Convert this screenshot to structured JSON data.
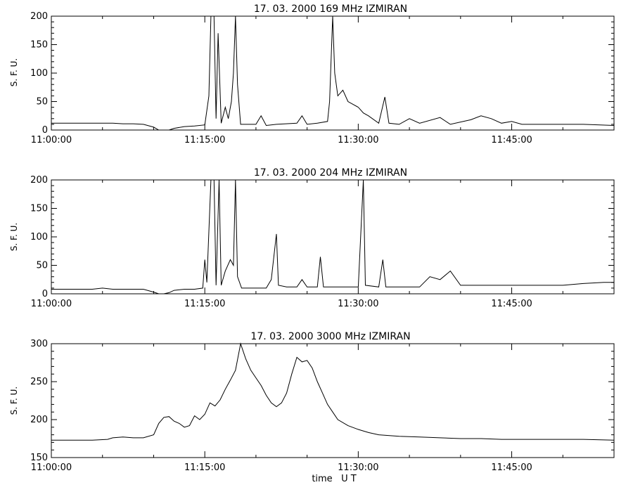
{
  "chart_data": [
    {
      "type": "line",
      "title": "17.  03.  2000    169 MHz    IZMIRAN",
      "ylabel": "S. F. U.",
      "xlabel": "",
      "x_unit": "minutes after 11:00:00 UT",
      "xlim": [
        0,
        55
      ],
      "ylim": [
        0,
        200
      ],
      "x_ticks": [
        "11:00:00",
        "11:15:00",
        "11:30:00",
        "11:45:00"
      ],
      "y_ticks": [
        0,
        50,
        100,
        150,
        200
      ],
      "grid": false,
      "series": [
        {
          "values": [
            [
              0,
              12
            ],
            [
              1,
              12
            ],
            [
              2,
              12
            ],
            [
              3,
              12
            ],
            [
              4,
              12
            ],
            [
              5,
              12
            ],
            [
              6,
              12
            ],
            [
              7,
              11
            ],
            [
              8,
              11
            ],
            [
              9,
              10
            ],
            [
              10,
              5
            ],
            [
              10.5,
              0
            ],
            [
              11.5,
              0
            ],
            [
              12,
              3
            ],
            [
              13,
              6
            ],
            [
              14,
              7
            ],
            [
              15,
              9
            ],
            [
              15.4,
              60
            ],
            [
              15.6,
              200
            ],
            [
              15.9,
              200
            ],
            [
              16.1,
              20
            ],
            [
              16.3,
              170
            ],
            [
              16.6,
              12
            ],
            [
              17,
              40
            ],
            [
              17.3,
              20
            ],
            [
              17.6,
              50
            ],
            [
              17.8,
              100
            ],
            [
              18,
              200
            ],
            [
              18.2,
              80
            ],
            [
              18.5,
              10
            ],
            [
              20,
              10
            ],
            [
              20.5,
              25
            ],
            [
              21,
              8
            ],
            [
              22,
              10
            ],
            [
              24,
              12
            ],
            [
              24.5,
              25
            ],
            [
              25,
              10
            ],
            [
              26,
              12
            ],
            [
              27,
              15
            ],
            [
              27.2,
              50
            ],
            [
              27.5,
              200
            ],
            [
              27.7,
              100
            ],
            [
              28,
              60
            ],
            [
              28.5,
              70
            ],
            [
              29,
              50
            ],
            [
              29.5,
              45
            ],
            [
              30,
              40
            ],
            [
              30.5,
              30
            ],
            [
              31,
              25
            ],
            [
              32,
              12
            ],
            [
              32.6,
              58
            ],
            [
              33,
              12
            ],
            [
              34,
              10
            ],
            [
              35,
              20
            ],
            [
              36,
              12
            ],
            [
              38,
              22
            ],
            [
              39,
              10
            ],
            [
              41,
              18
            ],
            [
              42,
              25
            ],
            [
              43,
              20
            ],
            [
              44,
              12
            ],
            [
              45,
              15
            ],
            [
              46,
              10
            ],
            [
              48,
              10
            ],
            [
              50,
              10
            ],
            [
              52,
              10
            ],
            [
              55,
              8
            ]
          ]
        }
      ]
    },
    {
      "type": "line",
      "title": "17.  03.  2000    204 MHz    IZMIRAN",
      "ylabel": "S. F. U.",
      "xlabel": "",
      "x_unit": "minutes after 11:00:00 UT",
      "xlim": [
        0,
        55
      ],
      "ylim": [
        0,
        200
      ],
      "x_ticks": [
        "11:00:00",
        "11:15:00",
        "11:30:00",
        "11:45:00"
      ],
      "y_ticks": [
        0,
        50,
        100,
        150,
        200
      ],
      "grid": false,
      "series": [
        {
          "values": [
            [
              0,
              8
            ],
            [
              2,
              8
            ],
            [
              4,
              8
            ],
            [
              5,
              10
            ],
            [
              6,
              8
            ],
            [
              7,
              8
            ],
            [
              8,
              8
            ],
            [
              9,
              8
            ],
            [
              10,
              3
            ],
            [
              10.5,
              0
            ],
            [
              11,
              0
            ],
            [
              11.5,
              2
            ],
            [
              12,
              6
            ],
            [
              13,
              8
            ],
            [
              14,
              8
            ],
            [
              14.8,
              10
            ],
            [
              15,
              60
            ],
            [
              15.2,
              20
            ],
            [
              15.6,
              200
            ],
            [
              15.9,
              200
            ],
            [
              16.1,
              15
            ],
            [
              16.4,
              200
            ],
            [
              16.6,
              15
            ],
            [
              17,
              40
            ],
            [
              17.5,
              60
            ],
            [
              17.8,
              50
            ],
            [
              18,
              200
            ],
            [
              18.2,
              30
            ],
            [
              18.6,
              10
            ],
            [
              19,
              10
            ],
            [
              20,
              10
            ],
            [
              21,
              10
            ],
            [
              21.5,
              25
            ],
            [
              22,
              105
            ],
            [
              22.2,
              15
            ],
            [
              23,
              12
            ],
            [
              24,
              12
            ],
            [
              24.5,
              25
            ],
            [
              25,
              12
            ],
            [
              26,
              12
            ],
            [
              26.3,
              65
            ],
            [
              26.6,
              12
            ],
            [
              28,
              12
            ],
            [
              30,
              12
            ],
            [
              30.5,
              200
            ],
            [
              30.7,
              15
            ],
            [
              32,
              12
            ],
            [
              32.4,
              60
            ],
            [
              32.7,
              12
            ],
            [
              34,
              12
            ],
            [
              36,
              12
            ],
            [
              37,
              30
            ],
            [
              38,
              25
            ],
            [
              39,
              40
            ],
            [
              40,
              15
            ],
            [
              42,
              15
            ],
            [
              44,
              15
            ],
            [
              46,
              15
            ],
            [
              48,
              15
            ],
            [
              50,
              15
            ],
            [
              52,
              18
            ],
            [
              54,
              20
            ],
            [
              55,
              20
            ]
          ]
        }
      ]
    },
    {
      "type": "line",
      "title": "17.  03.  2000    3000 MHz    IZMIRAN",
      "ylabel": "S. F. U.",
      "xlabel": "time   U T",
      "x_unit": "minutes after 11:00:00 UT",
      "xlim": [
        0,
        55
      ],
      "ylim": [
        150,
        300
      ],
      "x_ticks": [
        "11:00:00",
        "11:15:00",
        "11:30:00",
        "11:45:00"
      ],
      "y_ticks": [
        150,
        200,
        250,
        300
      ],
      "grid": false,
      "series": [
        {
          "values": [
            [
              0,
              173
            ],
            [
              2,
              173
            ],
            [
              4,
              173
            ],
            [
              5.5,
              174
            ],
            [
              6,
              176
            ],
            [
              7,
              177
            ],
            [
              8,
              176
            ],
            [
              9,
              176
            ],
            [
              10,
              180
            ],
            [
              10.5,
              195
            ],
            [
              11,
              203
            ],
            [
              11.5,
              204
            ],
            [
              12,
              198
            ],
            [
              12.5,
              195
            ],
            [
              13,
              190
            ],
            [
              13.5,
              192
            ],
            [
              14,
              205
            ],
            [
              14.5,
              200
            ],
            [
              15,
              207
            ],
            [
              15.5,
              222
            ],
            [
              16,
              218
            ],
            [
              16.5,
              226
            ],
            [
              17,
              240
            ],
            [
              17.5,
              252
            ],
            [
              18,
              265
            ],
            [
              18.5,
              300
            ],
            [
              19,
              280
            ],
            [
              19.5,
              265
            ],
            [
              20,
              255
            ],
            [
              20.5,
              245
            ],
            [
              21,
              232
            ],
            [
              21.5,
              222
            ],
            [
              22,
              217
            ],
            [
              22.5,
              222
            ],
            [
              23,
              235
            ],
            [
              23.5,
              260
            ],
            [
              24,
              282
            ],
            [
              24.5,
              276
            ],
            [
              25,
              278
            ],
            [
              25.5,
              268
            ],
            [
              26,
              250
            ],
            [
              26.5,
              235
            ],
            [
              27,
              220
            ],
            [
              27.5,
              210
            ],
            [
              28,
              200
            ],
            [
              29,
              192
            ],
            [
              30,
              187
            ],
            [
              31,
              183
            ],
            [
              32,
              180
            ],
            [
              34,
              178
            ],
            [
              36,
              177
            ],
            [
              38,
              176
            ],
            [
              40,
              175
            ],
            [
              42,
              175
            ],
            [
              44,
              174
            ],
            [
              46,
              174
            ],
            [
              48,
              174
            ],
            [
              50,
              174
            ],
            [
              52,
              174
            ],
            [
              55,
              173
            ]
          ]
        }
      ]
    }
  ],
  "colors": {
    "line": "#000000",
    "axis": "#000000",
    "background": "#ffffff"
  }
}
